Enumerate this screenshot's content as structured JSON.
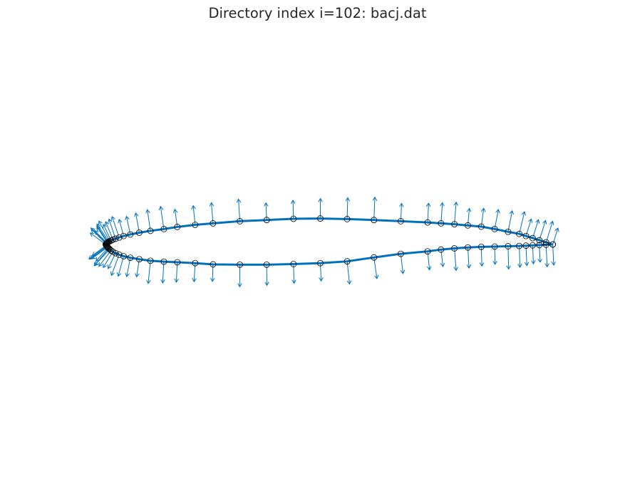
{
  "colors": {
    "line": "#0072BD",
    "marker_edge": "#000000",
    "title": "#262626"
  },
  "chart_data": {
    "type": "scatter",
    "title": "Directory index i=102: bacj.dat",
    "xlim": [
      -0.05,
      1.05
    ],
    "ylim": [
      -0.3,
      0.22
    ],
    "axis_visible": false,
    "grid": false,
    "legend": "none",
    "series": [
      {
        "name": "upper surface",
        "x": [
          1.0,
          0.985,
          0.97,
          0.955,
          0.94,
          0.925,
          0.9,
          0.87,
          0.84,
          0.81,
          0.78,
          0.75,
          0.72,
          0.66,
          0.6,
          0.54,
          0.48,
          0.42,
          0.36,
          0.3,
          0.24,
          0.2,
          0.16,
          0.13,
          0.1,
          0.075,
          0.055,
          0.04,
          0.03,
          0.022,
          0.016,
          0.012,
          0.009,
          0.007,
          0.005,
          0.004,
          0.003,
          0.002,
          0.001,
          0.0
        ],
        "y": [
          0.0,
          0.0035,
          0.007,
          0.0105,
          0.014,
          0.0175,
          0.021,
          0.0255,
          0.0295,
          0.0315,
          0.0335,
          0.035,
          0.0365,
          0.0385,
          0.0405,
          0.042,
          0.043,
          0.0425,
          0.0405,
          0.0385,
          0.035,
          0.0325,
          0.029,
          0.0255,
          0.0225,
          0.0195,
          0.0165,
          0.014,
          0.0115,
          0.0095,
          0.008,
          0.0065,
          0.0055,
          0.0045,
          0.0035,
          0.003,
          0.0025,
          0.0015,
          0.001,
          0.0
        ]
      },
      {
        "name": "lower surface",
        "x": [
          0.001,
          0.002,
          0.003,
          0.004,
          0.005,
          0.007,
          0.009,
          0.012,
          0.016,
          0.022,
          0.03,
          0.04,
          0.055,
          0.075,
          0.1,
          0.13,
          0.16,
          0.2,
          0.24,
          0.3,
          0.36,
          0.42,
          0.48,
          0.54,
          0.6,
          0.66,
          0.72,
          0.75,
          0.78,
          0.81,
          0.84,
          0.87,
          0.9,
          0.925,
          0.94,
          0.955,
          0.97,
          0.985,
          1.0
        ],
        "y": [
          -0.0015,
          -0.0025,
          -0.0035,
          -0.0045,
          -0.0055,
          -0.0065,
          -0.008,
          -0.01,
          -0.012,
          -0.0145,
          -0.017,
          -0.0195,
          -0.022,
          -0.0245,
          -0.027,
          -0.0285,
          -0.0295,
          -0.031,
          -0.033,
          -0.0335,
          -0.0335,
          -0.0325,
          -0.031,
          -0.028,
          -0.0215,
          -0.0155,
          -0.0115,
          -0.0085,
          -0.0065,
          -0.005,
          -0.004,
          -0.0035,
          -0.003,
          -0.0025,
          -0.002,
          -0.0015,
          -0.0011,
          -0.0005,
          0.0
        ]
      }
    ]
  }
}
